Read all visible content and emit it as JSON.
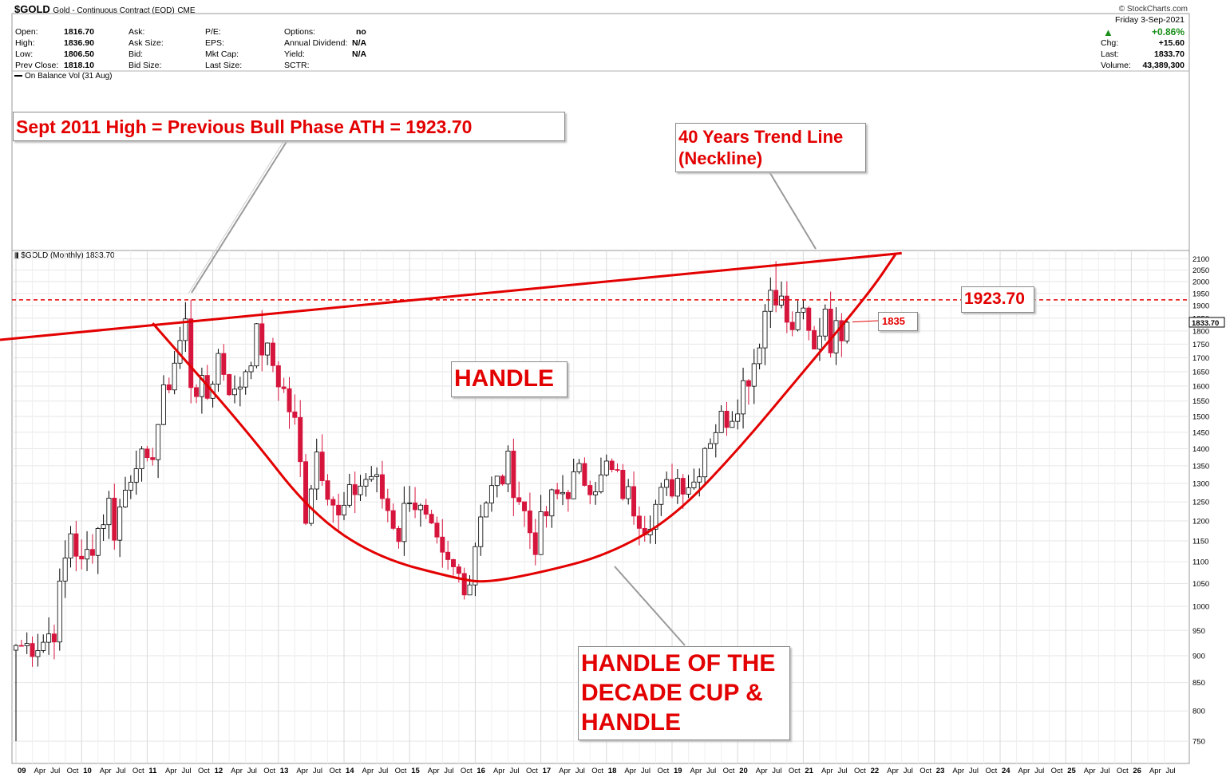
{
  "header": {
    "symbol": "$GOLD",
    "desc": "Gold - Continuous Contract (EOD)",
    "exchange": "CME",
    "credit": "© StockCharts.com",
    "date": "Friday   3-Sep-2021",
    "labels": {
      "open": "Open:",
      "high": "High:",
      "low": "Low:",
      "prev_close": "Prev Close:",
      "ask": "Ask:",
      "ask_size": "Ask Size:",
      "bid": "Bid:",
      "bid_size": "Bid Size:",
      "pe": "P/E:",
      "eps": "EPS:",
      "mkt_cap": "Mkt Cap:",
      "last_size": "Last Size:",
      "options": "Options:",
      "annual_dividend": "Annual Dividend:",
      "yield": "Yield:",
      "sctr": "SCTR:",
      "chg": "Chg:",
      "last": "Last:",
      "volume": "Volume:"
    },
    "values": {
      "open": "1816.70",
      "high": "1836.90",
      "low": "1806.50",
      "prev_close": "1818.10",
      "options": "no",
      "annual_dividend": "N/A",
      "yield": "N/A",
      "pct_change": "+0.86%",
      "chg": "+15.60",
      "last": "1833.70",
      "volume": "43,389,300"
    },
    "indicator": "On Balance Vol (31 Aug)",
    "panel_label": "$GOLD (Monthly) 1833.70"
  },
  "annotations": {
    "ath_callout": "Sept 2011 High = Previous Bull Phase ATH = 1923.70",
    "trend_line_callout": [
      "40 Years Trend Line",
      "(Neckline)"
    ],
    "handle_label": "HANDLE",
    "decade_callout": [
      "HANDLE OF THE",
      "DECADE CUP &",
      "HANDLE"
    ],
    "level_label": "1923.70",
    "level_1835": "1835"
  },
  "colors": {
    "up_candle": "#ffffff",
    "down_candle": "#d6153c",
    "annotation_red": "#e30000",
    "grid": "#e6e6e6",
    "price_tag": "#ffffff"
  },
  "chart_data": {
    "type": "candlestick",
    "title": "$GOLD (Monthly)",
    "interval": "monthly",
    "y_scale": "log",
    "ylim": [
      740,
      2130
    ],
    "yticks": [
      750,
      800,
      850,
      900,
      950,
      1000,
      1050,
      1100,
      1150,
      1200,
      1250,
      1300,
      1350,
      1400,
      1450,
      1500,
      1550,
      1600,
      1650,
      1700,
      1750,
      1800,
      1850,
      1900,
      1950,
      2000,
      2050,
      2100
    ],
    "last_price": 1833.7,
    "xlim": [
      "2009-01",
      "2026-12"
    ],
    "xticks": [
      {
        "t": "2009-01",
        "label": "09",
        "major": true
      },
      {
        "t": "2009-04",
        "label": "Apr"
      },
      {
        "t": "2009-07",
        "label": "Jul"
      },
      {
        "t": "2009-10",
        "label": "Oct"
      },
      {
        "t": "2010-01",
        "label": "10",
        "major": true
      },
      {
        "t": "2010-04",
        "label": "Apr"
      },
      {
        "t": "2010-07",
        "label": "Jul"
      },
      {
        "t": "2010-10",
        "label": "Oct"
      },
      {
        "t": "2011-01",
        "label": "11",
        "major": true
      },
      {
        "t": "2011-04",
        "label": "Apr"
      },
      {
        "t": "2011-07",
        "label": "Jul"
      },
      {
        "t": "2011-10",
        "label": "Oct"
      },
      {
        "t": "2012-01",
        "label": "12",
        "major": true
      },
      {
        "t": "2012-04",
        "label": "Apr"
      },
      {
        "t": "2012-07",
        "label": "Jul"
      },
      {
        "t": "2012-10",
        "label": "Oct"
      },
      {
        "t": "2013-01",
        "label": "13",
        "major": true
      },
      {
        "t": "2013-04",
        "label": "Apr"
      },
      {
        "t": "2013-07",
        "label": "Jul"
      },
      {
        "t": "2013-10",
        "label": "Oct"
      },
      {
        "t": "2014-01",
        "label": "14",
        "major": true
      },
      {
        "t": "2014-04",
        "label": "Apr"
      },
      {
        "t": "2014-07",
        "label": "Jul"
      },
      {
        "t": "2014-10",
        "label": "Oct"
      },
      {
        "t": "2015-01",
        "label": "15",
        "major": true
      },
      {
        "t": "2015-04",
        "label": "Apr"
      },
      {
        "t": "2015-07",
        "label": "Jul"
      },
      {
        "t": "2015-10",
        "label": "Oct"
      },
      {
        "t": "2016-01",
        "label": "16",
        "major": true
      },
      {
        "t": "2016-04",
        "label": "Apr"
      },
      {
        "t": "2016-07",
        "label": "Jul"
      },
      {
        "t": "2016-10",
        "label": "Oct"
      },
      {
        "t": "2017-01",
        "label": "17",
        "major": true
      },
      {
        "t": "2017-04",
        "label": "Apr"
      },
      {
        "t": "2017-07",
        "label": "Jul"
      },
      {
        "t": "2017-10",
        "label": "Oct"
      },
      {
        "t": "2018-01",
        "label": "18",
        "major": true
      },
      {
        "t": "2018-04",
        "label": "Apr"
      },
      {
        "t": "2018-07",
        "label": "Jul"
      },
      {
        "t": "2018-10",
        "label": "Oct"
      },
      {
        "t": "2019-01",
        "label": "19",
        "major": true
      },
      {
        "t": "2019-04",
        "label": "Apr"
      },
      {
        "t": "2019-07",
        "label": "Jul"
      },
      {
        "t": "2019-10",
        "label": "Oct"
      },
      {
        "t": "2020-01",
        "label": "20",
        "major": true
      },
      {
        "t": "2020-04",
        "label": "Apr"
      },
      {
        "t": "2020-07",
        "label": "Jul"
      },
      {
        "t": "2020-10",
        "label": "Oct"
      },
      {
        "t": "2021-01",
        "label": "21",
        "major": true
      },
      {
        "t": "2021-04",
        "label": "Apr"
      },
      {
        "t": "2021-07",
        "label": "Jul"
      },
      {
        "t": "2021-10",
        "label": "Oct"
      },
      {
        "t": "2022-01",
        "label": "22",
        "major": true
      },
      {
        "t": "2022-04",
        "label": "Apr"
      },
      {
        "t": "2022-07",
        "label": "Jul"
      },
      {
        "t": "2022-10",
        "label": "Oct"
      },
      {
        "t": "2023-01",
        "label": "23",
        "major": true
      },
      {
        "t": "2023-04",
        "label": "Apr"
      },
      {
        "t": "2023-07",
        "label": "Jul"
      },
      {
        "t": "2023-10",
        "label": "Oct"
      },
      {
        "t": "2024-01",
        "label": "24",
        "major": true
      },
      {
        "t": "2024-04",
        "label": "Apr"
      },
      {
        "t": "2024-07",
        "label": "Jul"
      },
      {
        "t": "2024-10",
        "label": "Oct"
      },
      {
        "t": "2025-01",
        "label": "25",
        "major": true
      },
      {
        "t": "2025-04",
        "label": "Apr"
      },
      {
        "t": "2025-07",
        "label": "Jul"
      },
      {
        "t": "2025-10",
        "label": "Oct"
      },
      {
        "t": "2026-01",
        "label": "26",
        "major": true
      },
      {
        "t": "2026-04",
        "label": "Apr"
      },
      {
        "t": "2026-07",
        "label": "Jul"
      }
    ],
    "close_anchors": [
      [
        "2009-01",
        920
      ],
      [
        "2009-03",
        920
      ],
      [
        "2009-06",
        930
      ],
      [
        "2009-08",
        955
      ],
      [
        "2009-11",
        1175
      ],
      [
        "2010-01",
        1085
      ],
      [
        "2010-06",
        1245
      ],
      [
        "2010-07",
        1180
      ],
      [
        "2010-11",
        1385
      ],
      [
        "2011-01",
        1330
      ],
      [
        "2011-04",
        1555
      ],
      [
        "2011-08",
        1825
      ],
      [
        "2011-09",
        1620
      ],
      [
        "2011-12",
        1565
      ],
      [
        "2012-02",
        1710
      ],
      [
        "2012-05",
        1560
      ],
      [
        "2012-09",
        1775
      ],
      [
        "2012-12",
        1675
      ],
      [
        "2013-02",
        1580
      ],
      [
        "2013-04",
        1470
      ],
      [
        "2013-06",
        1225
      ],
      [
        "2013-08",
        1395
      ],
      [
        "2013-12",
        1200
      ],
      [
        "2014-03",
        1285
      ],
      [
        "2014-06",
        1325
      ],
      [
        "2014-11",
        1170
      ],
      [
        "2015-01",
        1280
      ],
      [
        "2015-07",
        1095
      ],
      [
        "2015-11",
        1060
      ],
      [
        "2015-12",
        1060
      ],
      [
        "2016-02",
        1235
      ],
      [
        "2016-06",
        1320
      ],
      [
        "2016-07",
        1350
      ],
      [
        "2016-11",
        1175
      ],
      [
        "2016-12",
        1150
      ],
      [
        "2017-03",
        1250
      ],
      [
        "2017-08",
        1320
      ],
      [
        "2017-12",
        1305
      ],
      [
        "2018-01",
        1345
      ],
      [
        "2018-08",
        1200
      ],
      [
        "2018-12",
        1280
      ],
      [
        "2019-02",
        1315
      ],
      [
        "2019-05",
        1305
      ],
      [
        "2019-07",
        1415
      ],
      [
        "2019-09",
        1470
      ],
      [
        "2019-12",
        1520
      ],
      [
        "2020-04",
        1690
      ],
      [
        "2020-07",
        1975
      ],
      [
        "2020-08",
        1970
      ],
      [
        "2020-11",
        1775
      ],
      [
        "2020-12",
        1895
      ],
      [
        "2021-03",
        1715
      ],
      [
        "2021-05",
        1905
      ],
      [
        "2021-06",
        1770
      ],
      [
        "2021-08",
        1815
      ],
      [
        "2021-09",
        1833.7
      ]
    ],
    "notable_points": [
      {
        "date": "2011-09",
        "high": 1923.7,
        "label": "Sept 2011 High = Previous Bull Phase ATH = 1923.70"
      },
      {
        "date": "2015-12",
        "low": 1045
      },
      {
        "date": "2020-08",
        "high": 2089
      }
    ],
    "overlays": [
      {
        "type": "horizontal_line",
        "value": 1923.7,
        "style": "dashed",
        "color": "#e30000",
        "label": "1923.70"
      },
      {
        "type": "trend_line",
        "label": "40 Years Trend Line (Neckline)",
        "points": [
          [
            "2006-09",
            1760
          ],
          [
            "2022-07",
            2125
          ]
        ],
        "color": "#e30000"
      },
      {
        "type": "cup_arc",
        "label": "HANDLE OF THE DECADE CUP & HANDLE",
        "points": [
          [
            "2011-02",
            1830
          ],
          [
            "2012-07",
            1460
          ],
          [
            "2013-07",
            1220
          ],
          [
            "2014-07",
            1110
          ],
          [
            "2015-10",
            1060
          ],
          [
            "2016-03",
            1052
          ],
          [
            "2017-01",
            1075
          ],
          [
            "2018-01",
            1115
          ],
          [
            "2019-01",
            1205
          ],
          [
            "2020-01",
            1395
          ],
          [
            "2021-01",
            1650
          ],
          [
            "2022-01",
            1950
          ],
          [
            "2022-06",
            2125
          ]
        ],
        "color": "#e30000"
      }
    ],
    "price_markers": [
      {
        "value": 1835,
        "label": "1835"
      }
    ]
  }
}
